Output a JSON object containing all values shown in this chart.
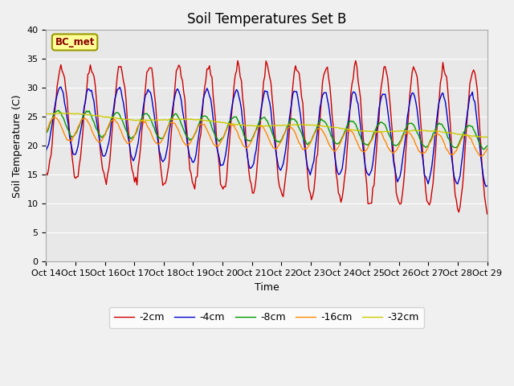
{
  "title": "Soil Temperatures Set B",
  "xlabel": "Time",
  "ylabel": "Soil Temperature (C)",
  "xlim_hours": [
    0,
    360
  ],
  "ylim": [
    0,
    40
  ],
  "yticks": [
    0,
    5,
    10,
    15,
    20,
    25,
    30,
    35,
    40
  ],
  "xtick_labels": [
    "Oct 14",
    "Oct 15",
    "Oct 16",
    "Oct 17",
    "Oct 18",
    "Oct 19",
    "Oct 20",
    "Oct 21",
    "Oct 22",
    "Oct 23",
    "Oct 24",
    "Oct 25",
    "Oct 26",
    "Oct 27",
    "Oct 28",
    "Oct 29"
  ],
  "line_colors": [
    "#cc0000",
    "#0000cc",
    "#009900",
    "#ff8800",
    "#cccc00"
  ],
  "line_labels": [
    "-2cm",
    "-4cm",
    "-8cm",
    "-16cm",
    "-32cm"
  ],
  "annotation_text": "BC_met",
  "bg_color": "#e8e8e8",
  "grid_color": "#ffffff",
  "fig_bg_color": "#f0f0f0",
  "title_fontsize": 12,
  "tick_fontsize": 8,
  "label_fontsize": 9,
  "legend_fontsize": 9
}
